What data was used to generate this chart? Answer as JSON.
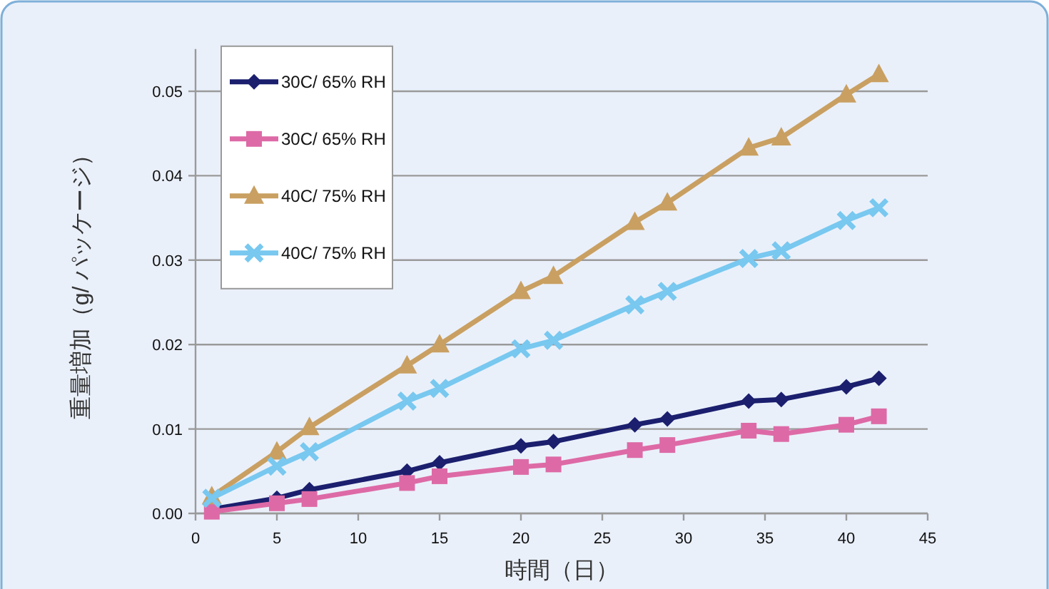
{
  "chart_data": {
    "type": "line",
    "xlabel": "時間（日）",
    "ylabel": "重量増加（g/ パッケージ）",
    "x": [
      1,
      5,
      7,
      13,
      15,
      20,
      22,
      27,
      29,
      34,
      36,
      40,
      42
    ],
    "xlim": [
      0,
      45
    ],
    "xticks": [
      0,
      5,
      10,
      15,
      20,
      25,
      30,
      35,
      40,
      45
    ],
    "ylim": [
      0,
      0.055
    ],
    "yticks": [
      {
        "value": 0,
        "label": "0.00"
      },
      {
        "value": 0.01,
        "label": "0.01"
      },
      {
        "value": 0.02,
        "label": "0.02"
      },
      {
        "value": 0.03,
        "label": "0.03"
      },
      {
        "value": 0.04,
        "label": "0.04"
      },
      {
        "value": 0.05,
        "label": "0.05"
      }
    ],
    "grid": "y",
    "legend": "top left",
    "line_style": "solid",
    "series": [
      {
        "name": "30C/ 65% RH",
        "color": "#1b1f6e",
        "marker": "diamond",
        "values": [
          0.0005,
          0.0018,
          0.0028,
          0.005,
          0.006,
          0.008,
          0.0085,
          0.0105,
          0.0112,
          0.0133,
          0.0135,
          0.015,
          0.016
        ]
      },
      {
        "name": "30C/ 65% RH",
        "color": "#dd6aa6",
        "marker": "square",
        "values": [
          0.0002,
          0.0012,
          0.0017,
          0.0036,
          0.0044,
          0.0055,
          0.0058,
          0.0075,
          0.0081,
          0.0098,
          0.0094,
          0.0105,
          0.0115
        ]
      },
      {
        "name": "40C/ 75% RH",
        "color": "#c9a062",
        "marker": "triangle",
        "values": [
          0.002,
          0.0073,
          0.0102,
          0.0175,
          0.02,
          0.0263,
          0.0281,
          0.0345,
          0.0368,
          0.0433,
          0.0445,
          0.0496,
          0.052
        ]
      },
      {
        "name": "40C/ 75% RH",
        "color": "#78c8f0",
        "marker": "cross",
        "values": [
          0.0018,
          0.0056,
          0.0073,
          0.0133,
          0.0148,
          0.0195,
          0.0205,
          0.0247,
          0.0263,
          0.0302,
          0.0311,
          0.0347,
          0.0362
        ]
      }
    ]
  }
}
